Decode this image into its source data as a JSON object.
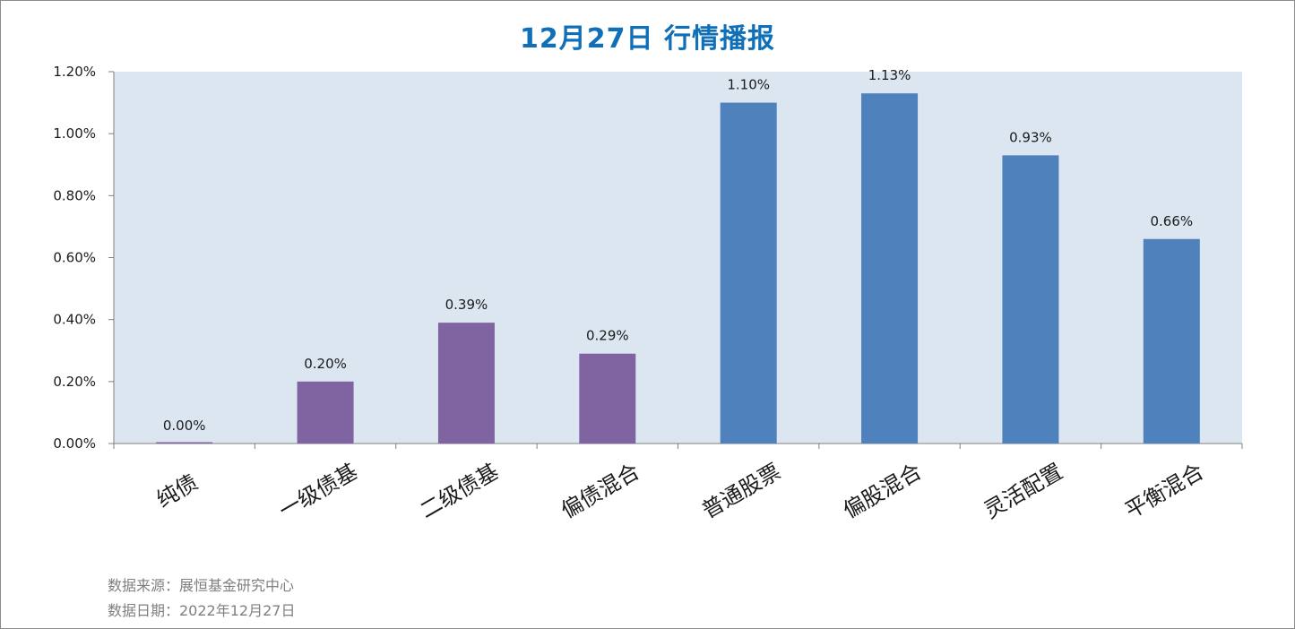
{
  "chart_data": {
    "type": "bar",
    "title": "12月27日 行情播报",
    "categories": [
      "纯债",
      "一级债基",
      "二级债基",
      "偏债混合",
      "普通股票",
      "偏股混合",
      "灵活配置",
      "平衡混合"
    ],
    "values": [
      0.0,
      0.2,
      0.39,
      0.29,
      1.1,
      1.13,
      0.93,
      0.66
    ],
    "value_labels": [
      "0.00%",
      "0.20%",
      "0.39%",
      "0.29%",
      "1.10%",
      "1.13%",
      "0.93%",
      "0.66%"
    ],
    "bar_colors": [
      "#8064a2",
      "#8064a2",
      "#8064a2",
      "#8064a2",
      "#4f81bd",
      "#4f81bd",
      "#4f81bd",
      "#4f81bd"
    ],
    "ylim": [
      0,
      1.2
    ],
    "yticks": [
      0,
      0.2,
      0.4,
      0.6,
      0.8,
      1.0,
      1.2
    ],
    "ytick_labels": [
      "0.00%",
      "0.20%",
      "0.40%",
      "0.60%",
      "0.80%",
      "1.00%",
      "1.20%"
    ],
    "xlabel": "",
    "ylabel": "",
    "grid": false,
    "plot_background": "#dce6f1"
  },
  "footer": {
    "source": "数据来源：展恒基金研究中心",
    "date": "数据日期：2022年12月27日"
  },
  "colors": {
    "title": "#0f6fb8",
    "footer_text": "#7f7f7f"
  }
}
